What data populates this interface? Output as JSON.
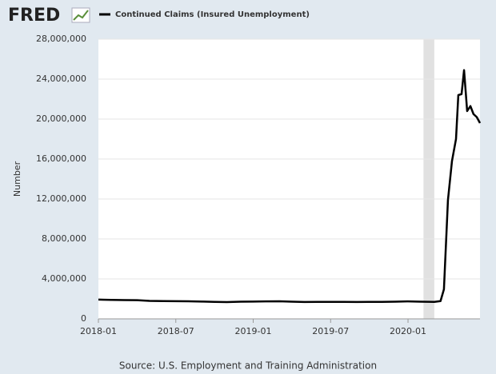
{
  "chart_data": {
    "type": "line",
    "brand": "FRED",
    "y_label": "Number",
    "source": "Source: U.S. Employment and Training Administration",
    "series": [
      {
        "name": "Continued Claims (Insured Unemployment)",
        "color": "#000000",
        "x": [
          2018.0,
          2018.08,
          2018.17,
          2018.25,
          2018.33,
          2018.42,
          2018.5,
          2018.58,
          2018.67,
          2018.75,
          2018.83,
          2018.92,
          2019.0,
          2019.08,
          2019.17,
          2019.25,
          2019.33,
          2019.42,
          2019.5,
          2019.58,
          2019.67,
          2019.75,
          2019.83,
          2019.92,
          2020.0,
          2020.08,
          2020.17,
          2020.21,
          2020.232,
          2020.258,
          2020.284,
          2020.31,
          2020.325,
          2020.346,
          2020.362,
          2020.382,
          2020.403,
          2020.423,
          2020.444,
          2020.465
        ],
        "values": [
          1930000,
          1900000,
          1880000,
          1870000,
          1800000,
          1780000,
          1770000,
          1760000,
          1730000,
          1700000,
          1680000,
          1720000,
          1730000,
          1750000,
          1760000,
          1720000,
          1690000,
          1700000,
          1700000,
          1700000,
          1690000,
          1700000,
          1700000,
          1720000,
          1750000,
          1720000,
          1700000,
          1780000,
          2960000,
          11900000,
          15800000,
          18000000,
          22400000,
          22500000,
          24900000,
          20800000,
          21300000,
          20500000,
          20200000,
          19600000
        ]
      }
    ],
    "shaded_ranges": [
      [
        2020.1,
        2020.17
      ]
    ],
    "xlim": [
      2018.0,
      2020.465
    ],
    "xticks": [
      {
        "value": 2018.0,
        "label": "2018-01"
      },
      {
        "value": 2018.5,
        "label": "2018-07"
      },
      {
        "value": 2019.0,
        "label": "2019-01"
      },
      {
        "value": 2019.5,
        "label": "2019-07"
      },
      {
        "value": 2020.0,
        "label": "2020-01"
      }
    ],
    "ylim": [
      0,
      28000000
    ],
    "yticks": [
      0,
      {
        "value": 4000000,
        "label": "4,000,000"
      },
      {
        "value": 8000000,
        "label": "8,000,000"
      },
      {
        "value": 12000000,
        "label": "12,000,000"
      },
      {
        "value": 16000000,
        "label": "16,000,000"
      },
      {
        "value": 20000000,
        "label": "20,000,000"
      },
      {
        "value": 24000000,
        "label": "24,000,000"
      },
      {
        "value": 28000000,
        "label": "28,000,000"
      }
    ],
    "grid": true
  }
}
